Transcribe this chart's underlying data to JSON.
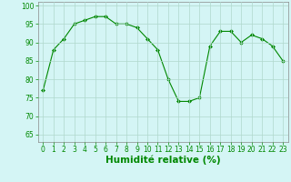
{
  "x": [
    0,
    1,
    2,
    3,
    4,
    5,
    6,
    7,
    8,
    9,
    10,
    11,
    12,
    13,
    14,
    15,
    16,
    17,
    18,
    19,
    20,
    21,
    22,
    23
  ],
  "y": [
    77,
    88,
    91,
    95,
    96,
    97,
    97,
    95,
    95,
    94,
    91,
    88,
    80,
    74,
    74,
    75,
    89,
    93,
    93,
    90,
    92,
    91,
    89,
    85
  ],
  "line_color": "#008800",
  "marker_color": "#008800",
  "bg_color": "#d4f5f5",
  "grid_color": "#b0d8cc",
  "xlabel": "Humidité relative (%)",
  "xlabel_color": "#008800",
  "yticks": [
    65,
    70,
    75,
    80,
    85,
    90,
    95,
    100
  ],
  "xticks": [
    0,
    1,
    2,
    3,
    4,
    5,
    6,
    7,
    8,
    9,
    10,
    11,
    12,
    13,
    14,
    15,
    16,
    17,
    18,
    19,
    20,
    21,
    22,
    23
  ],
  "ylim": [
    63,
    101
  ],
  "xlim": [
    -0.5,
    23.5
  ],
  "tick_color": "#008800",
  "tick_fontsize": 5.5,
  "xlabel_fontsize": 7.5
}
